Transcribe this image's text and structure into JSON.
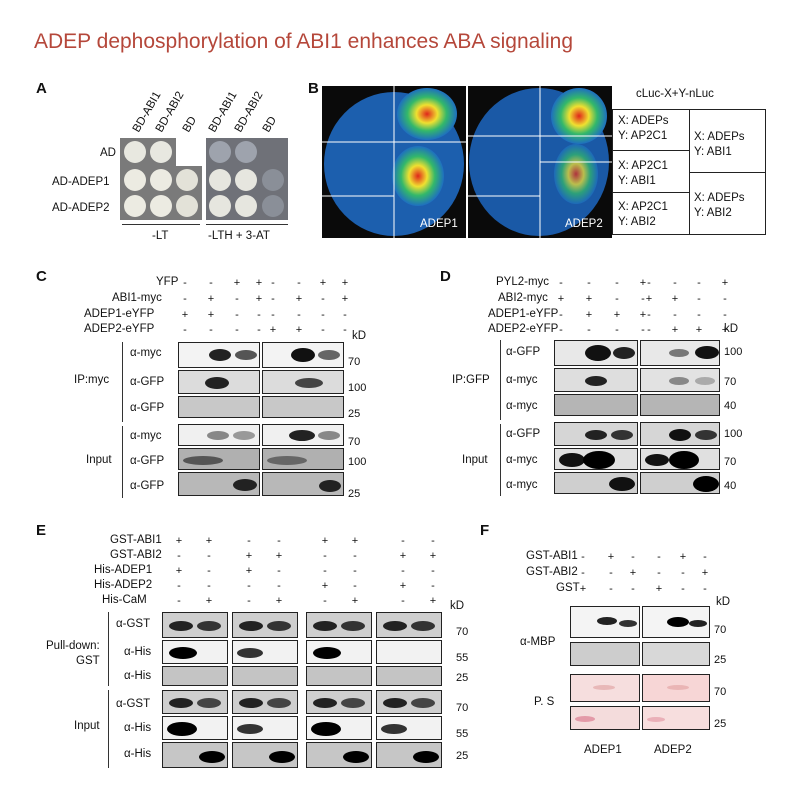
{
  "title": "ADEP dephosphorylation of ABI1 enhances ABA signaling",
  "panels": {
    "A": {
      "label": "A",
      "cols": [
        "BD-ABI1",
        "BD-ABI2",
        "BD"
      ],
      "rows": [
        "AD",
        "AD-ADEP1",
        "AD-ADEP2"
      ],
      "media": [
        "-LT",
        "-LTH + 3-AT"
      ]
    },
    "B": {
      "label": "B",
      "leaf_labels": [
        "ADEP1",
        "ADEP2"
      ],
      "key_title": "cLuc-X+Y-nLuc",
      "key": [
        {
          "x": "X: ADEPs",
          "y": "Y: AP2C1"
        },
        {
          "x": "X: ADEPs",
          "y": "Y: ABI1"
        },
        {
          "x": "X: AP2C1",
          "y": "Y: ABI1"
        },
        {
          "x": "X: ADEPs",
          "y": "Y: ABI2"
        },
        {
          "x": "X: AP2C1",
          "y": "Y: ABI2"
        }
      ]
    },
    "C": {
      "label": "C",
      "conditions": [
        {
          "name": "YFP",
          "vals": [
            "-",
            "-",
            "+",
            "+",
            "-",
            "-",
            "+",
            "+"
          ]
        },
        {
          "name": "ABI1-myc",
          "vals": [
            "-",
            "+",
            "-",
            "+",
            "-",
            "+",
            "-",
            "+"
          ]
        },
        {
          "name": "ADEP1-eYFP",
          "vals": [
            "+",
            "+",
            "-",
            "-",
            "-",
            "-",
            "-",
            "-"
          ]
        },
        {
          "name": "ADEP2-eYFP",
          "vals": [
            "-",
            "-",
            "-",
            "-",
            "+",
            "+",
            "-",
            "-"
          ]
        }
      ],
      "kd": "kD",
      "groups": [
        "IP:myc",
        "Input"
      ],
      "antibodies": [
        "α-myc",
        "α-GFP",
        "α-GFP",
        "α-myc",
        "α-GFP",
        "α-GFP"
      ],
      "markers": [
        "70",
        "100",
        "25",
        "70",
        "100",
        "25"
      ]
    },
    "D": {
      "label": "D",
      "conditions": [
        {
          "name": "PYL2-myc",
          "vals": [
            "-",
            "-",
            "-",
            "+",
            "-",
            "-",
            "-",
            "+"
          ]
        },
        {
          "name": "ABI2-myc",
          "vals": [
            "+",
            "+",
            "-",
            "-",
            "+",
            "+",
            "-",
            "-"
          ]
        },
        {
          "name": "ADEP1-eYFP",
          "vals": [
            "-",
            "+",
            "+",
            "+",
            "-",
            "-",
            "-",
            "-"
          ]
        },
        {
          "name": "ADEP2-eYFP",
          "vals": [
            "-",
            "-",
            "-",
            "-",
            "-",
            "+",
            "+",
            "+"
          ]
        }
      ],
      "kd": "kD",
      "groups": [
        "IP:GFP",
        "Input"
      ],
      "antibodies": [
        "α-GFP",
        "α-myc",
        "α-myc",
        "α-GFP",
        "α-myc",
        "α-myc"
      ],
      "markers": [
        "100",
        "70",
        "40",
        "100",
        "70",
        "40"
      ]
    },
    "E": {
      "label": "E",
      "conditions": [
        {
          "name": "GST-ABI1",
          "vals": [
            "+",
            "+",
            "-",
            "-",
            "+",
            "+",
            "-",
            "-"
          ]
        },
        {
          "name": "GST-ABI2",
          "vals": [
            "-",
            "-",
            "+",
            "+",
            "-",
            "-",
            "+",
            "+"
          ]
        },
        {
          "name": "His-ADEP1",
          "vals": [
            "+",
            "-",
            "+",
            "-",
            "-",
            "-",
            "-",
            "-"
          ]
        },
        {
          "name": "His-ADEP2",
          "vals": [
            "-",
            "-",
            "-",
            "-",
            "+",
            "-",
            "+",
            "-"
          ]
        },
        {
          "name": "His-CaM",
          "vals": [
            "-",
            "+",
            "-",
            "+",
            "-",
            "+",
            "-",
            "+"
          ]
        }
      ],
      "kd": "kD",
      "groups": [
        "Pull-down:",
        "GST",
        "Input"
      ],
      "antibodies": [
        "α-GST",
        "α-His",
        "α-His",
        "α-GST",
        "α-His",
        "α-His"
      ],
      "markers": [
        "70",
        "55",
        "25",
        "70",
        "55",
        "25"
      ]
    },
    "F": {
      "label": "F",
      "conditions": [
        {
          "name": "GST-ABI1",
          "vals": [
            "-",
            "+",
            "-",
            "-",
            "+",
            "-"
          ]
        },
        {
          "name": "GST-ABI2",
          "vals": [
            "-",
            "-",
            "+",
            "-",
            "-",
            "+"
          ]
        },
        {
          "name": "GST",
          "vals": [
            "+",
            "-",
            "-",
            "+",
            "-",
            "-"
          ]
        }
      ],
      "kd": "kD",
      "antibodies": [
        "α-MBP",
        "P. S"
      ],
      "markers": [
        "70",
        "25",
        "70",
        "25"
      ],
      "bottom": [
        "ADEP1",
        "ADEP2"
      ]
    }
  }
}
